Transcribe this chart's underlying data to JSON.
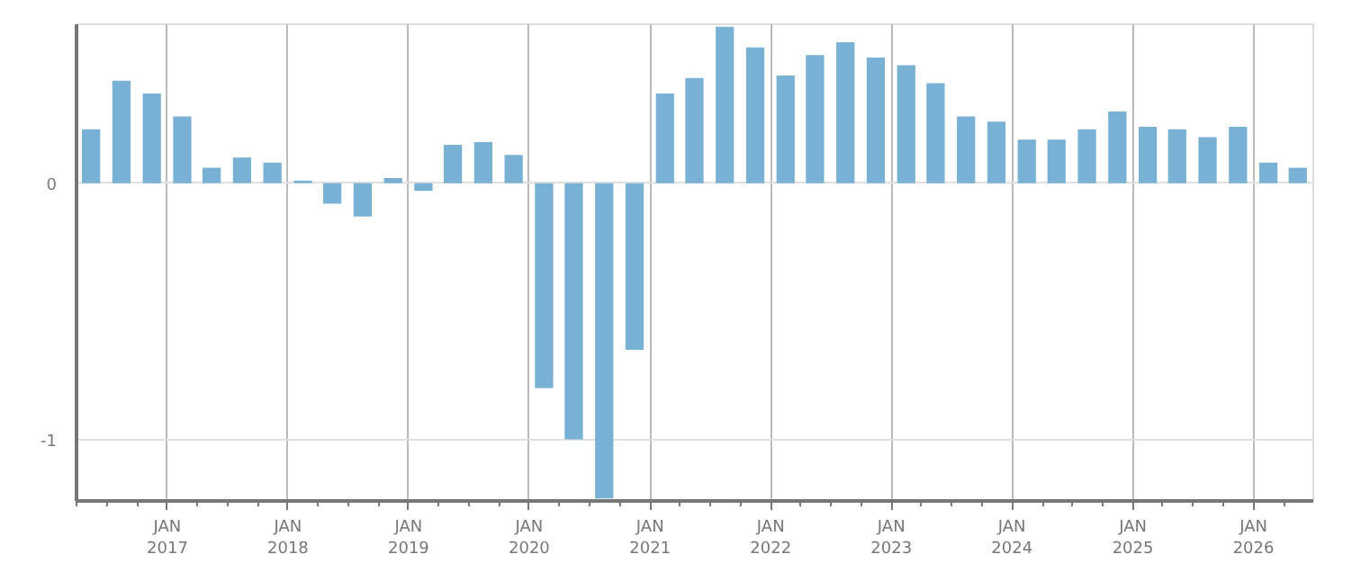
{
  "chart_data": {
    "type": "bar",
    "color": "#78b1d3",
    "x": [
      "2016-05-15",
      "2016-08-15",
      "2016-11-15",
      "2017-02-15",
      "2017-05-15",
      "2017-08-15",
      "2017-11-15",
      "2018-02-15",
      "2018-05-15",
      "2018-08-15",
      "2018-11-15",
      "2019-02-15",
      "2019-05-15",
      "2019-08-15",
      "2019-11-15",
      "2020-02-15",
      "2020-05-15",
      "2020-08-15",
      "2020-11-15",
      "2021-02-15",
      "2021-05-15",
      "2021-08-15",
      "2021-11-15",
      "2022-02-15",
      "2022-05-15",
      "2022-08-15",
      "2022-11-15",
      "2023-02-15",
      "2023-05-15",
      "2023-08-15",
      "2023-11-15",
      "2024-02-15",
      "2024-05-15",
      "2024-08-15",
      "2024-11-15",
      "2025-02-15",
      "2025-05-15",
      "2025-08-15",
      "2025-11-15",
      "2026-02-15",
      "2026-05-15"
    ],
    "values": [
      0.21,
      0.4,
      0.35,
      0.26,
      0.06,
      0.1,
      0.08,
      0.01,
      -0.08,
      -0.13,
      0.02,
      -0.03,
      0.15,
      0.16,
      0.11,
      -0.8,
      -1.0,
      -1.23,
      -0.65,
      0.35,
      0.41,
      0.61,
      0.53,
      0.42,
      0.5,
      0.55,
      0.49,
      0.46,
      0.39,
      0.26,
      0.24,
      0.17,
      0.17,
      0.21,
      0.28,
      0.22,
      0.21,
      0.18,
      0.22,
      0.08,
      0.06
    ],
    "xlim": [
      "2016-04-01",
      "2026-07-01"
    ],
    "xticks": [
      {
        "value": "2017-01-01",
        "label": "JAN\n2017"
      },
      {
        "value": "2018-01-01",
        "label": "JAN\n2018"
      },
      {
        "value": "2019-01-01",
        "label": "JAN\n2019"
      },
      {
        "value": "2020-01-01",
        "label": "JAN\n2020"
      },
      {
        "value": "2021-01-01",
        "label": "JAN\n2021"
      },
      {
        "value": "2022-01-01",
        "label": "JAN\n2022"
      },
      {
        "value": "2023-01-01",
        "label": "JAN\n2023"
      },
      {
        "value": "2024-01-01",
        "label": "JAN\n2024"
      },
      {
        "value": "2025-01-01",
        "label": "JAN\n2025"
      },
      {
        "value": "2026-01-01",
        "label": "JAN\n2026"
      }
    ],
    "ylim": [
      -1.24,
      0.62
    ],
    "yticks": [
      0,
      -1
    ],
    "grid": true
  }
}
